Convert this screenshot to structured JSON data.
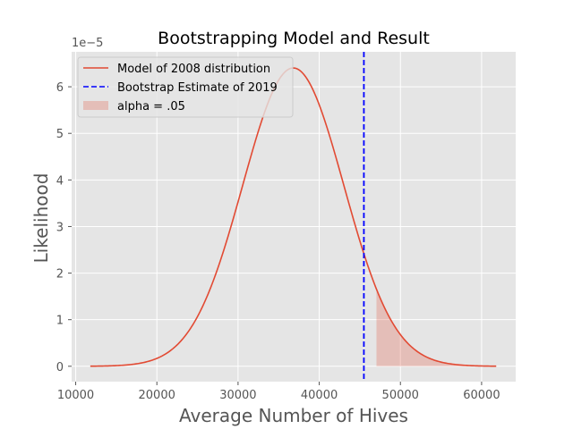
{
  "chart_data": {
    "type": "line",
    "title": "Bootstrapping Model and Result",
    "xlabel": "Average Number of Hives",
    "ylabel": "Likelihood",
    "y_scale_note": "1e−5",
    "xlim": [
      9500,
      64200
    ],
    "ylim": [
      -3.3e-06,
      6.75e-05
    ],
    "xticks": [
      10000,
      20000,
      30000,
      40000,
      50000,
      60000
    ],
    "xtick_labels": [
      "10000",
      "20000",
      "30000",
      "40000",
      "50000",
      "60000"
    ],
    "yticks": [
      0,
      1e-05,
      2e-05,
      3e-05,
      4e-05,
      5e-05,
      6e-05
    ],
    "ytick_labels": [
      "0",
      "1",
      "2",
      "3",
      "4",
      "5",
      "6"
    ],
    "grid": true,
    "legend_position": "upper-left",
    "series": [
      {
        "name": "Model of 2008 distribution",
        "kind": "normal-pdf",
        "mean": 36800,
        "std": 6230,
        "x_range": [
          11800,
          61800
        ],
        "color": "#E24A33"
      }
    ],
    "vline": {
      "name": "Bootstrap Estimate of 2019",
      "x": 45500,
      "color": "#0000FF",
      "style": "dashed"
    },
    "shaded_region": {
      "name": "alpha = .05",
      "x_from": 47050,
      "x_to": 61800,
      "color": "#E24A33",
      "opacity": 0.25
    }
  }
}
